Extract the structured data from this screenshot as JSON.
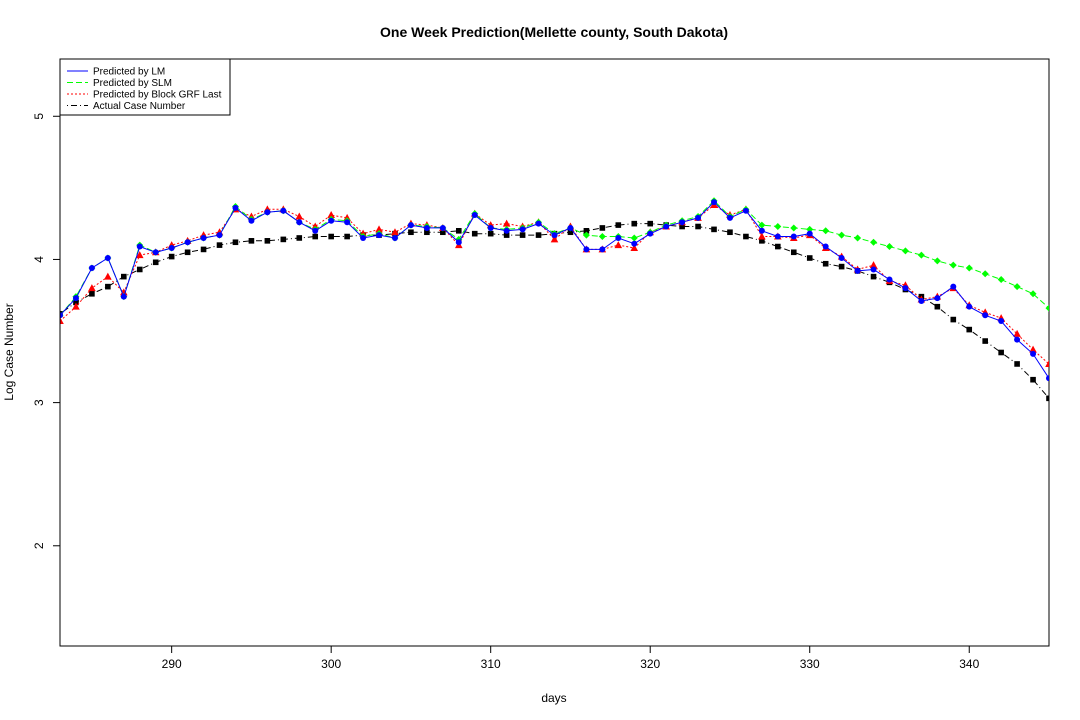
{
  "chart_data": {
    "type": "line",
    "title": "One Week Prediction(Mellette county, South Dakota)",
    "xlabel": "days",
    "ylabel": "Log Case Number",
    "xlim": [
      283,
      345
    ],
    "ylim": [
      1.3,
      5.4
    ],
    "x_ticks": [
      290,
      300,
      310,
      320,
      330,
      340
    ],
    "y_ticks": [
      2,
      3,
      4,
      5
    ],
    "grid": false,
    "legend_position": "top-left",
    "x": [
      283,
      284,
      285,
      286,
      287,
      288,
      289,
      290,
      291,
      292,
      293,
      294,
      295,
      296,
      297,
      298,
      299,
      300,
      301,
      302,
      303,
      304,
      305,
      306,
      307,
      308,
      309,
      310,
      311,
      312,
      313,
      314,
      315,
      316,
      317,
      318,
      319,
      320,
      321,
      322,
      323,
      324,
      325,
      326,
      327,
      328,
      329,
      330,
      331,
      332,
      333,
      334,
      335,
      336,
      337,
      338,
      339,
      340,
      341,
      342,
      343,
      344,
      345
    ],
    "series": [
      {
        "name": "Predicted by LM",
        "color": "#0000ff",
        "line_style": "solid",
        "marker": "circle",
        "values": [
          3.61,
          3.73,
          3.94,
          4.01,
          3.74,
          4.09,
          4.05,
          4.08,
          4.12,
          4.15,
          4.17,
          4.36,
          4.27,
          4.33,
          4.34,
          4.26,
          4.2,
          4.27,
          4.26,
          4.15,
          4.17,
          4.15,
          4.24,
          4.22,
          4.22,
          4.12,
          4.31,
          4.22,
          4.2,
          4.21,
          4.25,
          4.17,
          4.22,
          4.07,
          4.07,
          4.15,
          4.11,
          4.18,
          4.23,
          4.26,
          4.29,
          4.4,
          4.29,
          4.34,
          4.2,
          4.16,
          4.16,
          4.18,
          4.09,
          4.01,
          3.92,
          3.93,
          3.86,
          3.8,
          3.71,
          3.73,
          3.81,
          3.67,
          3.61,
          3.57,
          3.44,
          3.34,
          3.17
        ]
      },
      {
        "name": "Predicted by SLM",
        "color": "#00ff00",
        "line_style": "dashed",
        "marker": "diamond",
        "values": [
          3.61,
          3.74,
          3.94,
          4.01,
          3.74,
          4.1,
          4.05,
          4.08,
          4.12,
          4.15,
          4.17,
          4.37,
          4.28,
          4.33,
          4.34,
          4.26,
          4.21,
          4.28,
          4.27,
          4.16,
          4.18,
          4.15,
          4.24,
          4.23,
          4.22,
          4.14,
          4.32,
          4.22,
          4.21,
          4.22,
          4.26,
          4.18,
          4.22,
          4.17,
          4.16,
          4.16,
          4.15,
          4.19,
          4.24,
          4.27,
          4.3,
          4.41,
          4.3,
          4.35,
          4.24,
          4.23,
          4.22,
          4.21,
          4.2,
          4.17,
          4.15,
          4.12,
          4.09,
          4.06,
          4.03,
          3.99,
          3.96,
          3.94,
          3.9,
          3.86,
          3.81,
          3.76,
          3.66
        ]
      },
      {
        "name": "Predicted by Block GRF Last",
        "color": "#ff0000",
        "line_style": "dotted",
        "marker": "triangle",
        "values": [
          3.57,
          3.67,
          3.8,
          3.88,
          3.77,
          4.03,
          4.05,
          4.1,
          4.13,
          4.17,
          4.19,
          4.35,
          4.3,
          4.35,
          4.35,
          4.3,
          4.23,
          4.31,
          4.29,
          4.18,
          4.21,
          4.19,
          4.25,
          4.24,
          4.22,
          4.1,
          4.32,
          4.24,
          4.25,
          4.23,
          4.26,
          4.14,
          4.23,
          4.07,
          4.07,
          4.1,
          4.08,
          4.19,
          4.23,
          4.26,
          4.29,
          4.38,
          4.31,
          4.35,
          4.16,
          4.16,
          4.15,
          4.17,
          4.08,
          4.02,
          3.93,
          3.96,
          3.85,
          3.82,
          3.72,
          3.74,
          3.8,
          3.68,
          3.63,
          3.59,
          3.48,
          3.37,
          3.27
        ]
      },
      {
        "name": "Actual Case Number",
        "color": "#000000",
        "line_style": "dotdash",
        "marker": "square",
        "values": [
          3.62,
          3.7,
          3.76,
          3.81,
          3.88,
          3.93,
          3.98,
          4.02,
          4.05,
          4.07,
          4.1,
          4.12,
          4.13,
          4.13,
          4.14,
          4.15,
          4.16,
          4.16,
          4.16,
          4.17,
          4.17,
          4.18,
          4.19,
          4.19,
          4.19,
          4.2,
          4.18,
          4.18,
          4.17,
          4.17,
          4.17,
          4.18,
          4.19,
          4.2,
          4.22,
          4.24,
          4.25,
          4.25,
          4.24,
          4.23,
          4.23,
          4.21,
          4.19,
          4.16,
          4.13,
          4.09,
          4.05,
          4.01,
          3.97,
          3.95,
          3.92,
          3.88,
          3.84,
          3.79,
          3.74,
          3.67,
          3.58,
          3.51,
          3.43,
          3.35,
          3.27,
          3.16,
          3.03
        ]
      }
    ]
  }
}
